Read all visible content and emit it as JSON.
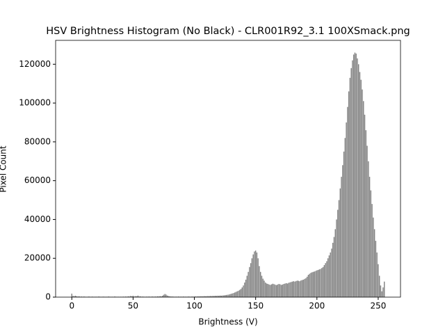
{
  "chart_data": {
    "type": "bar",
    "title": "HSV Brightness Histogram (No Black) - CLR001R92_3.1 100XSmack.png",
    "xlabel": "Brightness (V)",
    "ylabel": "Pixel Count",
    "color": "#808080",
    "x": [
      0,
      1,
      2,
      3,
      4,
      5,
      6,
      7,
      8,
      9,
      10,
      11,
      12,
      13,
      14,
      15,
      16,
      17,
      18,
      19,
      20,
      21,
      22,
      23,
      24,
      25,
      26,
      27,
      28,
      29,
      30,
      31,
      32,
      33,
      34,
      35,
      36,
      37,
      38,
      39,
      40,
      41,
      42,
      43,
      44,
      45,
      46,
      47,
      48,
      49,
      50,
      51,
      52,
      53,
      54,
      55,
      56,
      57,
      58,
      59,
      60,
      61,
      62,
      63,
      64,
      65,
      66,
      67,
      68,
      69,
      70,
      71,
      72,
      73,
      74,
      75,
      76,
      77,
      78,
      79,
      80,
      81,
      82,
      83,
      84,
      85,
      86,
      87,
      88,
      89,
      90,
      91,
      92,
      93,
      94,
      95,
      96,
      97,
      98,
      99,
      100,
      101,
      102,
      103,
      104,
      105,
      106,
      107,
      108,
      109,
      110,
      111,
      112,
      113,
      114,
      115,
      116,
      117,
      118,
      119,
      120,
      121,
      122,
      123,
      124,
      125,
      126,
      127,
      128,
      129,
      130,
      131,
      132,
      133,
      134,
      135,
      136,
      137,
      138,
      139,
      140,
      141,
      142,
      143,
      144,
      145,
      146,
      147,
      148,
      149,
      150,
      151,
      152,
      153,
      154,
      155,
      156,
      157,
      158,
      159,
      160,
      161,
      162,
      163,
      164,
      165,
      166,
      167,
      168,
      169,
      170,
      171,
      172,
      173,
      174,
      175,
      176,
      177,
      178,
      179,
      180,
      181,
      182,
      183,
      184,
      185,
      186,
      187,
      188,
      189,
      190,
      191,
      192,
      193,
      194,
      195,
      196,
      197,
      198,
      199,
      200,
      201,
      202,
      203,
      204,
      205,
      206,
      207,
      208,
      209,
      210,
      211,
      212,
      213,
      214,
      215,
      216,
      217,
      218,
      219,
      220,
      221,
      222,
      223,
      224,
      225,
      226,
      227,
      228,
      229,
      230,
      231,
      232,
      233,
      234,
      235,
      236,
      237,
      238,
      239,
      240,
      241,
      242,
      243,
      244,
      245,
      246,
      247,
      248,
      249,
      250,
      251,
      252,
      253,
      254,
      255
    ],
    "values": [
      1800,
      600,
      500,
      700,
      400,
      300,
      400,
      200,
      300,
      200,
      300,
      200,
      150,
      200,
      300,
      150,
      200,
      250,
      150,
      200,
      200,
      150,
      300,
      200,
      150,
      200,
      250,
      150,
      200,
      150,
      300,
      200,
      150,
      200,
      150,
      300,
      200,
      150,
      200,
      150,
      200,
      150,
      250,
      200,
      300,
      200,
      400,
      300,
      600,
      400,
      700,
      300,
      500,
      400,
      800,
      300,
      400,
      200,
      300,
      200,
      200,
      250,
      200,
      300,
      200,
      250,
      300,
      200,
      300,
      250,
      400,
      300,
      500,
      400,
      700,
      1200,
      1600,
      1300,
      800,
      500,
      400,
      300,
      300,
      250,
      200,
      250,
      200,
      300,
      200,
      250,
      200,
      300,
      200,
      250,
      200,
      300,
      250,
      200,
      300,
      250,
      300,
      350,
      300,
      400,
      350,
      400,
      450,
      400,
      500,
      450,
      500,
      550,
      500,
      600,
      550,
      650,
      600,
      700,
      650,
      750,
      700,
      800,
      750,
      850,
      900,
      1000,
      1100,
      1200,
      1300,
      1500,
      1700,
      1900,
      2100,
      2400,
      2700,
      3000,
      3300,
      3700,
      4200,
      5000,
      6000,
      7500,
      9000,
      11000,
      13000,
      15500,
      17500,
      20000,
      22000,
      23500,
      24000,
      23000,
      20000,
      16000,
      13000,
      11000,
      9500,
      8500,
      7500,
      7000,
      6800,
      6500,
      6300,
      6600,
      6900,
      6700,
      6400,
      6200,
      6500,
      6800,
      6600,
      6300,
      6500,
      6800,
      7000,
      7200,
      7000,
      7400,
      7600,
      7800,
      8000,
      8200,
      8000,
      8300,
      8500,
      8400,
      8200,
      8600,
      8800,
      9000,
      9400,
      9800,
      10500,
      11500,
      12000,
      12500,
      12800,
      13000,
      13200,
      13500,
      13800,
      14000,
      14300,
      14500,
      15000,
      15500,
      16500,
      17500,
      18500,
      20000,
      21500,
      23000,
      25000,
      28000,
      31000,
      35000,
      40000,
      45000,
      50000,
      56000,
      62000,
      68000,
      75000,
      82000,
      90000,
      98000,
      106000,
      113000,
      118000,
      122000,
      125000,
      126000,
      125500,
      123000,
      120000,
      116000,
      112000,
      107000,
      101000,
      94000,
      86000,
      78000,
      70000,
      62000,
      55000,
      48000,
      41000,
      35000,
      29000,
      23000,
      17000,
      11000,
      6000,
      3000,
      5000,
      8000
    ],
    "xlim": [
      -13.2,
      268.2
    ],
    "xticks": [
      0,
      50,
      100,
      150,
      200,
      250
    ],
    "ylim": [
      0,
      132300
    ],
    "yticks": [
      0,
      20000,
      40000,
      60000,
      80000,
      100000,
      120000
    ]
  }
}
